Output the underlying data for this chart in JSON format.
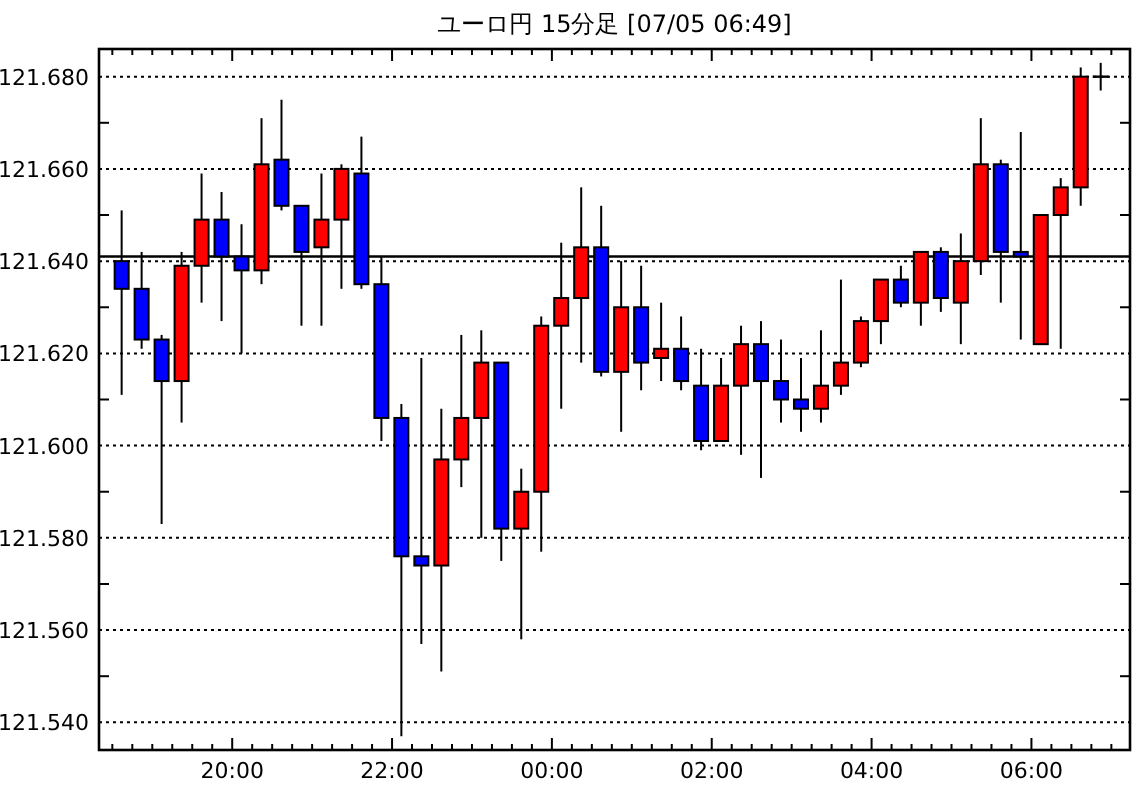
{
  "chart_data": {
    "type": "candlestick",
    "title": "ユーロ円 15分足 [07/05 06:49]",
    "x": [
      "--07-04T18:37",
      "--07-04T18:52",
      "--07-04T19:07",
      "--07-04T19:22",
      "--07-04T19:37",
      "--07-04T19:52",
      "--07-04T20:07",
      "--07-04T20:22",
      "--07-04T20:37",
      "--07-04T20:52",
      "--07-04T21:07",
      "--07-04T21:22",
      "--07-04T21:37",
      "--07-04T21:52",
      "--07-04T22:07",
      "--07-04T22:22",
      "--07-04T22:37",
      "--07-04T22:52",
      "--07-04T23:07",
      "--07-04T23:22",
      "--07-04T23:37",
      "--07-04T23:52",
      "--07-05T00:07",
      "--07-05T00:22",
      "--07-05T00:37",
      "--07-05T00:52",
      "--07-05T01:07",
      "--07-05T01:22",
      "--07-05T01:37",
      "--07-05T01:52",
      "--07-05T02:07",
      "--07-05T02:22",
      "--07-05T02:37",
      "--07-05T02:52",
      "--07-05T03:07",
      "--07-05T03:22",
      "--07-05T03:37",
      "--07-05T03:52",
      "--07-05T04:07",
      "--07-05T04:22",
      "--07-05T04:37",
      "--07-05T04:52",
      "--07-05T05:07",
      "--07-05T05:22",
      "--07-05T05:37",
      "--07-05T05:52",
      "--07-05T06:07",
      "--07-05T06:22",
      "--07-05T06:37",
      "--07-05T06:52"
    ],
    "ohlc": [
      [
        121.64,
        121.651,
        121.611,
        121.634
      ],
      [
        121.634,
        121.642,
        121.621,
        121.623
      ],
      [
        121.623,
        121.624,
        121.583,
        121.614
      ],
      [
        121.614,
        121.642,
        121.605,
        121.639
      ],
      [
        121.639,
        121.659,
        121.631,
        121.649
      ],
      [
        121.649,
        121.655,
        121.627,
        121.641
      ],
      [
        121.641,
        121.648,
        121.62,
        121.638
      ],
      [
        121.638,
        121.671,
        121.635,
        121.661
      ],
      [
        121.662,
        121.675,
        121.651,
        121.652
      ],
      [
        121.652,
        121.652,
        121.626,
        121.642
      ],
      [
        121.643,
        121.659,
        121.626,
        121.649
      ],
      [
        121.649,
        121.661,
        121.634,
        121.66
      ],
      [
        121.659,
        121.667,
        121.634,
        121.635
      ],
      [
        121.635,
        121.641,
        121.601,
        121.606
      ],
      [
        121.606,
        121.609,
        121.537,
        121.576
      ],
      [
        121.576,
        121.619,
        121.557,
        121.574
      ],
      [
        121.574,
        121.608,
        121.551,
        121.597
      ],
      [
        121.597,
        121.624,
        121.591,
        121.606
      ],
      [
        121.606,
        121.625,
        121.58,
        121.618
      ],
      [
        121.618,
        121.618,
        121.575,
        121.582
      ],
      [
        121.582,
        121.595,
        121.558,
        121.59
      ],
      [
        121.59,
        121.628,
        121.577,
        121.626
      ],
      [
        121.626,
        121.644,
        121.608,
        121.632
      ],
      [
        121.632,
        121.656,
        121.618,
        121.643
      ],
      [
        121.643,
        121.652,
        121.615,
        121.616
      ],
      [
        121.616,
        121.64,
        121.603,
        121.63
      ],
      [
        121.63,
        121.639,
        121.612,
        121.618
      ],
      [
        121.619,
        121.631,
        121.614,
        121.621
      ],
      [
        121.621,
        121.628,
        121.612,
        121.614
      ],
      [
        121.613,
        121.621,
        121.599,
        121.601
      ],
      [
        121.601,
        121.619,
        121.601,
        121.613
      ],
      [
        121.613,
        121.626,
        121.598,
        121.622
      ],
      [
        121.622,
        121.627,
        121.593,
        121.614
      ],
      [
        121.614,
        121.623,
        121.605,
        121.61
      ],
      [
        121.61,
        121.619,
        121.603,
        121.608
      ],
      [
        121.608,
        121.625,
        121.605,
        121.613
      ],
      [
        121.613,
        121.636,
        121.611,
        121.618
      ],
      [
        121.618,
        121.628,
        121.617,
        121.627
      ],
      [
        121.627,
        121.636,
        121.622,
        121.636
      ],
      [
        121.636,
        121.639,
        121.63,
        121.631
      ],
      [
        121.631,
        121.642,
        121.626,
        121.642
      ],
      [
        121.642,
        121.643,
        121.629,
        121.632
      ],
      [
        121.631,
        121.646,
        121.622,
        121.64
      ],
      [
        121.64,
        121.671,
        121.637,
        121.661
      ],
      [
        121.661,
        121.662,
        121.631,
        121.642
      ],
      [
        121.642,
        121.668,
        121.623,
        121.641
      ],
      [
        121.622,
        121.65,
        121.622,
        121.65
      ],
      [
        121.65,
        121.658,
        121.621,
        121.656
      ],
      [
        121.656,
        121.682,
        121.652,
        121.68
      ],
      [
        121.68,
        121.683,
        121.677,
        121.68
      ]
    ],
    "colors": [
      "#0000ff",
      "#0000ff",
      "#0000ff",
      "#ff0000",
      "#ff0000",
      "#0000ff",
      "#0000ff",
      "#ff0000",
      "#0000ff",
      "#0000ff",
      "#ff0000",
      "#ff0000",
      "#0000ff",
      "#0000ff",
      "#0000ff",
      "#0000ff",
      "#ff0000",
      "#ff0000",
      "#ff0000",
      "#0000ff",
      "#ff0000",
      "#ff0000",
      "#ff0000",
      "#ff0000",
      "#0000ff",
      "#ff0000",
      "#0000ff",
      "#ff0000",
      "#0000ff",
      "#0000ff",
      "#ff0000",
      "#ff0000",
      "#0000ff",
      "#0000ff",
      "#0000ff",
      "#ff0000",
      "#ff0000",
      "#ff0000",
      "#ff0000",
      "#0000ff",
      "#ff0000",
      "#0000ff",
      "#ff0000",
      "#ff0000",
      "#0000ff",
      "#0000ff",
      "#ff0000",
      "#ff0000",
      "#ff0000",
      "#000000"
    ],
    "xlim": [
      "--07-04T18:20",
      "--07-05T07:14"
    ],
    "xticks": [
      {
        "value": "--07-04T18:30",
        "label": null
      },
      {
        "value": "--07-04T18:45",
        "label": null
      },
      {
        "value": "--07-04T19:00",
        "label": null
      },
      {
        "value": "--07-04T19:15",
        "label": null
      },
      {
        "value": "--07-04T19:30",
        "label": null
      },
      {
        "value": "--07-04T19:45",
        "label": null
      },
      {
        "value": "--07-04T20:00",
        "label": "20:00"
      },
      {
        "value": "--07-04T20:15",
        "label": null
      },
      {
        "value": "--07-04T20:30",
        "label": null
      },
      {
        "value": "--07-04T20:45",
        "label": null
      },
      {
        "value": "--07-04T21:00",
        "label": null
      },
      {
        "value": "--07-04T21:15",
        "label": null
      },
      {
        "value": "--07-04T21:30",
        "label": null
      },
      {
        "value": "--07-04T21:45",
        "label": null
      },
      {
        "value": "--07-04T22:00",
        "label": "22:00"
      },
      {
        "value": "--07-04T22:15",
        "label": null
      },
      {
        "value": "--07-04T22:30",
        "label": null
      },
      {
        "value": "--07-04T22:45",
        "label": null
      },
      {
        "value": "--07-04T23:00",
        "label": null
      },
      {
        "value": "--07-04T23:15",
        "label": null
      },
      {
        "value": "--07-04T23:30",
        "label": null
      },
      {
        "value": "--07-04T23:45",
        "label": null
      },
      {
        "value": "--07-05T00:00",
        "label": "00:00"
      },
      {
        "value": "--07-05T00:15",
        "label": null
      },
      {
        "value": "--07-05T00:30",
        "label": null
      },
      {
        "value": "--07-05T00:45",
        "label": null
      },
      {
        "value": "--07-05T01:00",
        "label": null
      },
      {
        "value": "--07-05T01:15",
        "label": null
      },
      {
        "value": "--07-05T01:30",
        "label": null
      },
      {
        "value": "--07-05T01:45",
        "label": null
      },
      {
        "value": "--07-05T02:00",
        "label": "02:00"
      },
      {
        "value": "--07-05T02:15",
        "label": null
      },
      {
        "value": "--07-05T02:30",
        "label": null
      },
      {
        "value": "--07-05T02:45",
        "label": null
      },
      {
        "value": "--07-05T03:00",
        "label": null
      },
      {
        "value": "--07-05T03:15",
        "label": null
      },
      {
        "value": "--07-05T03:30",
        "label": null
      },
      {
        "value": "--07-05T03:45",
        "label": null
      },
      {
        "value": "--07-05T04:00",
        "label": "04:00"
      },
      {
        "value": "--07-05T04:15",
        "label": null
      },
      {
        "value": "--07-05T04:30",
        "label": null
      },
      {
        "value": "--07-05T04:45",
        "label": null
      },
      {
        "value": "--07-05T05:00",
        "label": null
      },
      {
        "value": "--07-05T05:15",
        "label": null
      },
      {
        "value": "--07-05T05:30",
        "label": null
      },
      {
        "value": "--07-05T05:45",
        "label": null
      },
      {
        "value": "--07-05T06:00",
        "label": "06:00"
      },
      {
        "value": "--07-05T06:15",
        "label": null
      },
      {
        "value": "--07-05T06:30",
        "label": null
      },
      {
        "value": "--07-05T06:45",
        "label": null
      },
      {
        "value": "--07-05T07:00",
        "label": null
      }
    ],
    "ylim": [
      121.534,
      121.686
    ],
    "yticks": [
      {
        "value": 121.54,
        "label": "121.540"
      },
      {
        "value": 121.55,
        "label": null
      },
      {
        "value": 121.56,
        "label": "121.560"
      },
      {
        "value": 121.57,
        "label": null
      },
      {
        "value": 121.58,
        "label": "121.580"
      },
      {
        "value": 121.59,
        "label": null
      },
      {
        "value": 121.6,
        "label": "121.600"
      },
      {
        "value": 121.61,
        "label": null
      },
      {
        "value": 121.62,
        "label": "121.620"
      },
      {
        "value": 121.63,
        "label": null
      },
      {
        "value": 121.64,
        "label": "121.640"
      },
      {
        "value": 121.65,
        "label": null
      },
      {
        "value": 121.66,
        "label": "121.660"
      },
      {
        "value": 121.67,
        "label": null
      },
      {
        "value": 121.68,
        "label": "121.680"
      }
    ],
    "grid": "y",
    "ref_lines": [
      {
        "axis": "y",
        "value": 121.641,
        "color": "#000000",
        "line_style": "solid"
      }
    ]
  }
}
